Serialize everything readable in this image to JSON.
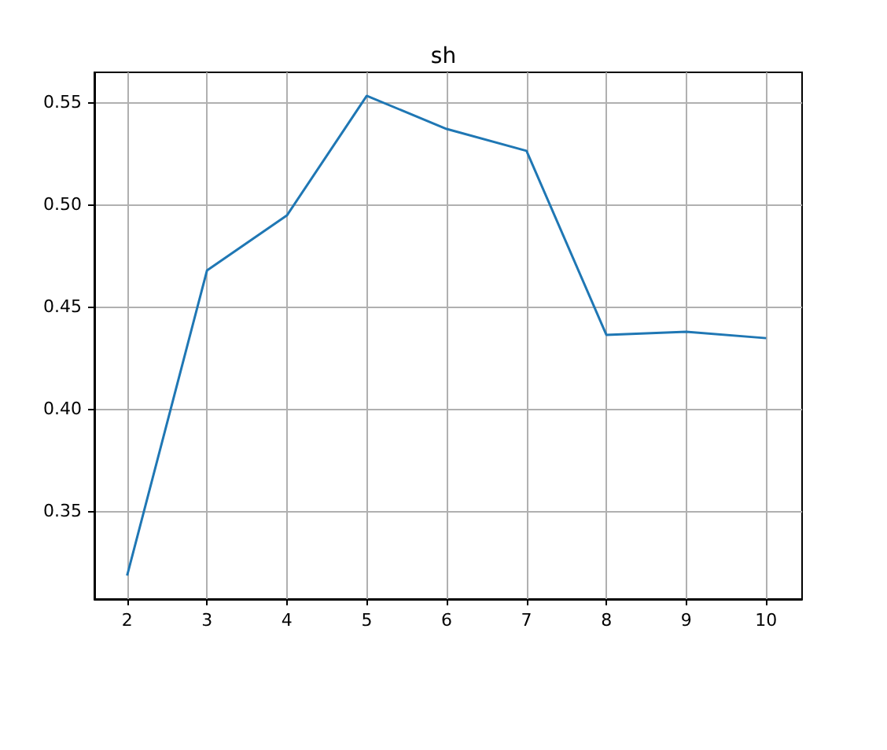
{
  "chart_data": {
    "type": "line",
    "title": "sh",
    "x": [
      2,
      3,
      4,
      5,
      6,
      7,
      8,
      9,
      10
    ],
    "series": [
      {
        "color": "#1f77b4",
        "values": [
          0.3185,
          0.4677,
          0.4946,
          0.5531,
          0.5369,
          0.5262,
          0.4362,
          0.4377,
          0.4346
        ]
      }
    ],
    "xlim": [
      1.59,
      10.45
    ],
    "xticks": [
      2,
      3,
      4,
      5,
      6,
      7,
      8,
      9,
      10
    ],
    "ylim": [
      0.307,
      0.5646
    ],
    "yticks": [
      {
        "value": 0.35,
        "label": "0.35"
      },
      {
        "value": 0.4,
        "label": "0.40"
      },
      {
        "value": 0.45,
        "label": "0.45"
      },
      {
        "value": 0.5,
        "label": "0.50"
      },
      {
        "value": 0.55,
        "label": "0.55"
      }
    ],
    "grid": true,
    "marker": "none",
    "line_style": "solid"
  }
}
